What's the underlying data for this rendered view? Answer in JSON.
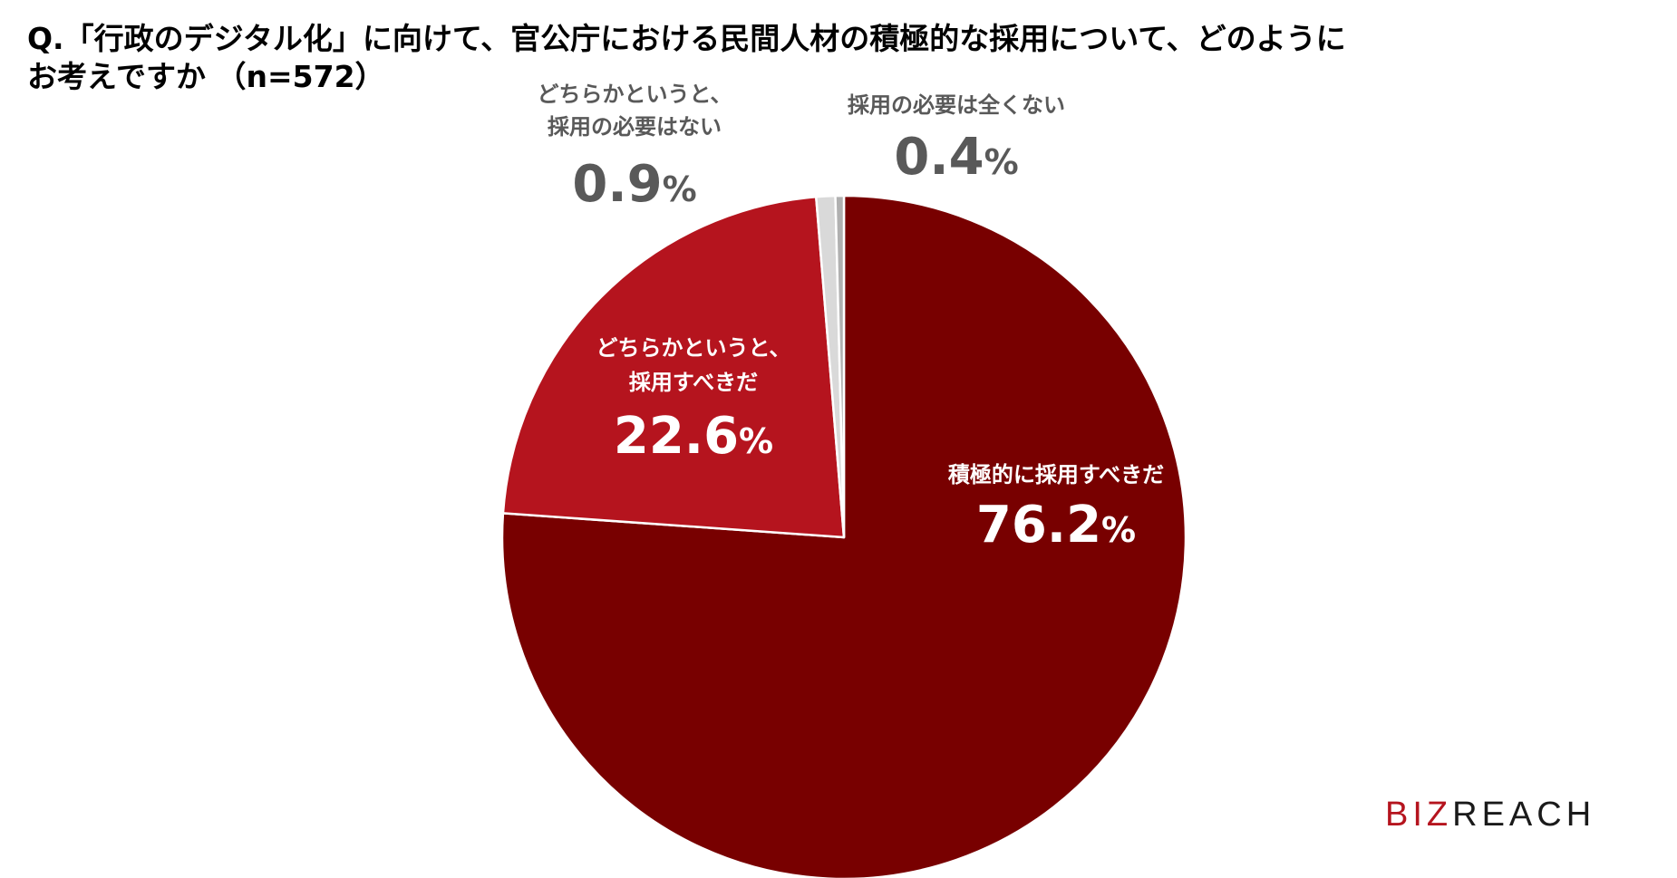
{
  "title": {
    "line1": "Q.「行政のデジタル化」に向けて、官公庁における民間人材の積極的な採用について、どのように",
    "line2": "お考えですか （n=572）"
  },
  "chart_data": {
    "type": "pie",
    "n": 572,
    "start": "12 o'clock",
    "direction": "clockwise",
    "slices": [
      {
        "label_lines": [
          "積極的に採用すべきだ"
        ],
        "value": 76.2,
        "value_text": "76.2",
        "unit": "%",
        "color": "#780000",
        "label_color": "#ffffff"
      },
      {
        "label_lines": [
          "どちらかというと、",
          "採用すべきだ"
        ],
        "value": 22.6,
        "value_text": "22.6",
        "unit": "%",
        "color": "#b5141e",
        "label_color": "#ffffff"
      },
      {
        "label_lines": [
          "どちらかというと、",
          "採用の必要はない"
        ],
        "value": 0.9,
        "value_text": "0.9",
        "unit": "%",
        "color": "#d9d9d9",
        "label_color": "#595959"
      },
      {
        "label_lines": [
          "採用の必要は全くない"
        ],
        "value": 0.4,
        "value_text": "0.4",
        "unit": "%",
        "color": "#b0b0b0",
        "label_color": "#595959"
      }
    ]
  },
  "logo": {
    "part1": "BIZ",
    "part2": "REACH"
  }
}
